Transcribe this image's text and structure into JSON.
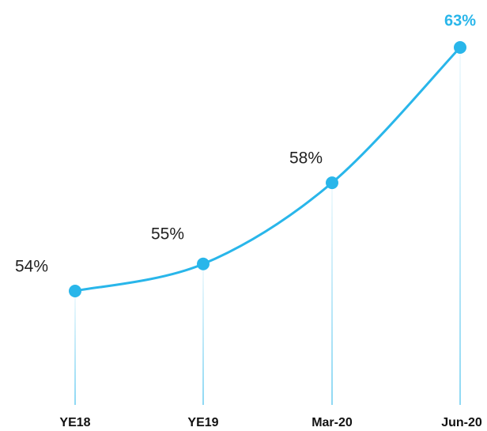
{
  "chart_data": {
    "type": "line",
    "categories": [
      "YE18",
      "YE19",
      "Mar-20",
      "Jun-20"
    ],
    "series": [
      {
        "color": "#29b6ea",
        "values": [
          54,
          55,
          58,
          63
        ],
        "value_labels": [
          "54%",
          "55%",
          "58%",
          "63%"
        ]
      }
    ]
  }
}
